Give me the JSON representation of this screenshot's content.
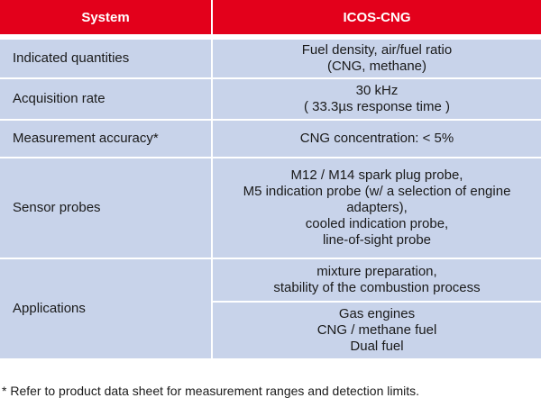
{
  "header": {
    "col1": "System",
    "col2": "ICOS-CNG"
  },
  "rows": [
    {
      "label": "Indicated quantities",
      "value_lines": [
        "Fuel density, air/fuel ratio",
        "(CNG, methane)"
      ]
    },
    {
      "label": "Acquisition rate",
      "value_lines": [
        "30 kHz",
        "( 33.3µs response time )"
      ]
    },
    {
      "label": "Measurement accuracy*",
      "value_lines": [
        "CNG concentration:  < 5%"
      ]
    },
    {
      "label": "Sensor probes",
      "value_lines": [
        "M12 / M14 spark plug probe,",
        "M5 indication probe (w/ a selection of engine",
        "adapters),",
        "cooled indication probe,",
        "line-of-sight probe"
      ]
    },
    {
      "label": "Applications",
      "value_groups": [
        [
          "mixture preparation,",
          "stability of the combustion process"
        ],
        [
          "Gas engines",
          "CNG / methane fuel",
          "Dual fuel"
        ]
      ]
    }
  ],
  "footnote": "* Refer to product data sheet for measurement ranges and detection limits.",
  "colors": {
    "header_bg": "#e3001b",
    "cell_bg": "#c8d3ea",
    "header_text": "#ffffff"
  }
}
